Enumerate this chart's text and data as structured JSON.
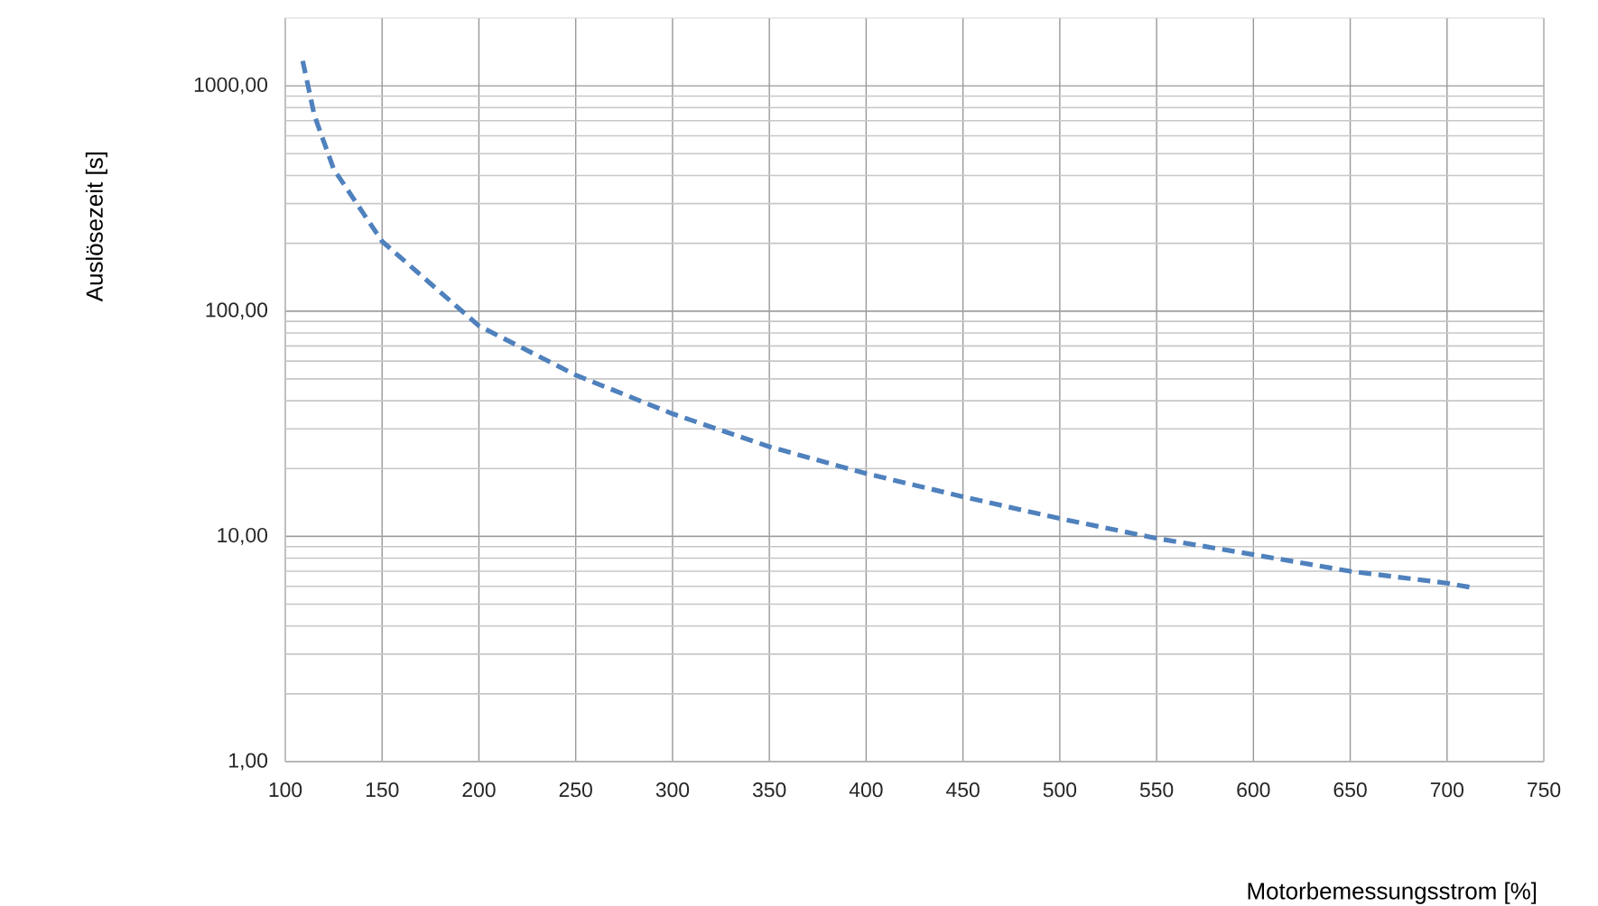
{
  "chart_data": {
    "type": "line",
    "xlabel": "Motorbemessungsstrom [%]",
    "ylabel": "Auslösezeit [s]",
    "log": "y",
    "grid": true,
    "marker": "none",
    "line_style": "dashed",
    "xlim": [
      100,
      750
    ],
    "xticks": [
      100,
      150,
      200,
      250,
      300,
      350,
      400,
      450,
      500,
      550,
      600,
      650,
      700,
      750
    ],
    "ylim": [
      1,
      2000
    ],
    "yticks": [
      {
        "value": 1,
        "label": "1,00"
      },
      {
        "value": 10,
        "label": "10,00"
      },
      {
        "value": 100,
        "label": "100,00"
      },
      {
        "value": 1000,
        "label": "1000,00"
      }
    ],
    "series": [
      {
        "color": "#4f81bd",
        "x": [
          109,
          115,
          125,
          150,
          200,
          250,
          300,
          350,
          400,
          450,
          500,
          550,
          600,
          650,
          700,
          714
        ],
        "values": [
          1290,
          740,
          427,
          204,
          86,
          52,
          35,
          25,
          19,
          15,
          12,
          9.8,
          8.3,
          7.0,
          6.2,
          5.9
        ]
      }
    ]
  }
}
